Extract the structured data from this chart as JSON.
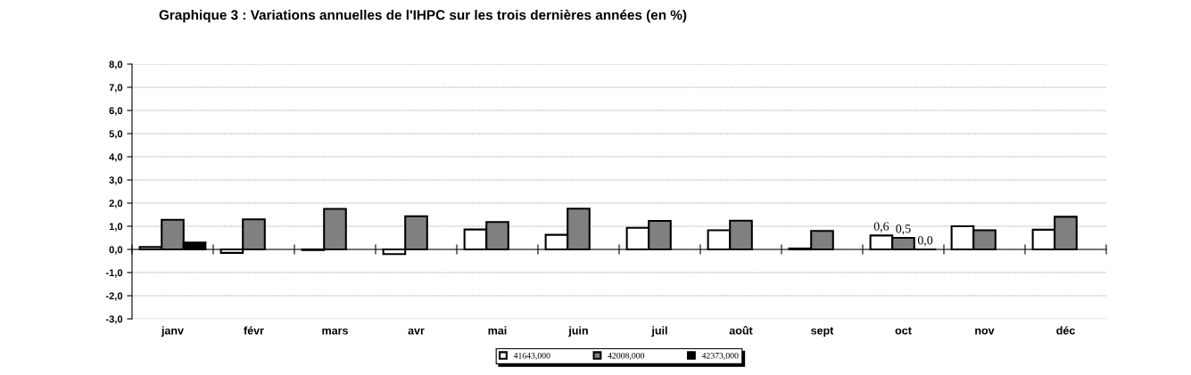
{
  "chart_data": {
    "type": "bar",
    "title": "Graphique 3 : Variations annuelles de l'IHPC sur les trois dernières années (en %)",
    "categories": [
      "janv",
      "févr",
      "mars",
      "avr",
      "mai",
      "juin",
      "juil",
      "août",
      "sept",
      "oct",
      "nov",
      "déc"
    ],
    "series": [
      {
        "name": "41643,000",
        "color": "#ffffff",
        "values": [
          0.1,
          -0.15,
          -0.03,
          -0.2,
          0.86,
          0.63,
          0.93,
          0.83,
          0.04,
          0.6,
          1.0,
          0.85
        ],
        "value_labels": [
          null,
          null,
          null,
          null,
          null,
          null,
          null,
          null,
          null,
          "0,6",
          null,
          null
        ]
      },
      {
        "name": "42008,000",
        "color": "#808080",
        "values": [
          1.28,
          1.3,
          1.75,
          1.43,
          1.18,
          1.76,
          1.23,
          1.24,
          0.8,
          0.5,
          0.83,
          1.41
        ],
        "value_labels": [
          null,
          null,
          null,
          null,
          null,
          null,
          null,
          null,
          null,
          "0,5",
          null,
          null
        ]
      },
      {
        "name": "42373,000",
        "color": "#000000",
        "values": [
          0.3,
          null,
          null,
          null,
          null,
          null,
          null,
          null,
          null,
          0.0,
          null,
          null
        ],
        "value_labels": [
          null,
          null,
          null,
          null,
          null,
          null,
          null,
          null,
          null,
          "0,0",
          null,
          null
        ]
      }
    ],
    "ylim": [
      -3,
      8
    ],
    "yticks": [
      {
        "value": -3,
        "label": "-3,0"
      },
      {
        "value": -2,
        "label": "-2,0"
      },
      {
        "value": -1,
        "label": "-1,0"
      },
      {
        "value": 0,
        "label": "0,0"
      },
      {
        "value": 1,
        "label": "1,0"
      },
      {
        "value": 2,
        "label": "2,0"
      },
      {
        "value": 3,
        "label": "3,0"
      },
      {
        "value": 4,
        "label": "4,0"
      },
      {
        "value": 5,
        "label": "5,0"
      },
      {
        "value": 6,
        "label": "6,0"
      },
      {
        "value": 7,
        "label": "7,0"
      },
      {
        "value": 8,
        "label": "8,0"
      }
    ],
    "grid": "y",
    "legend": "bottom"
  }
}
